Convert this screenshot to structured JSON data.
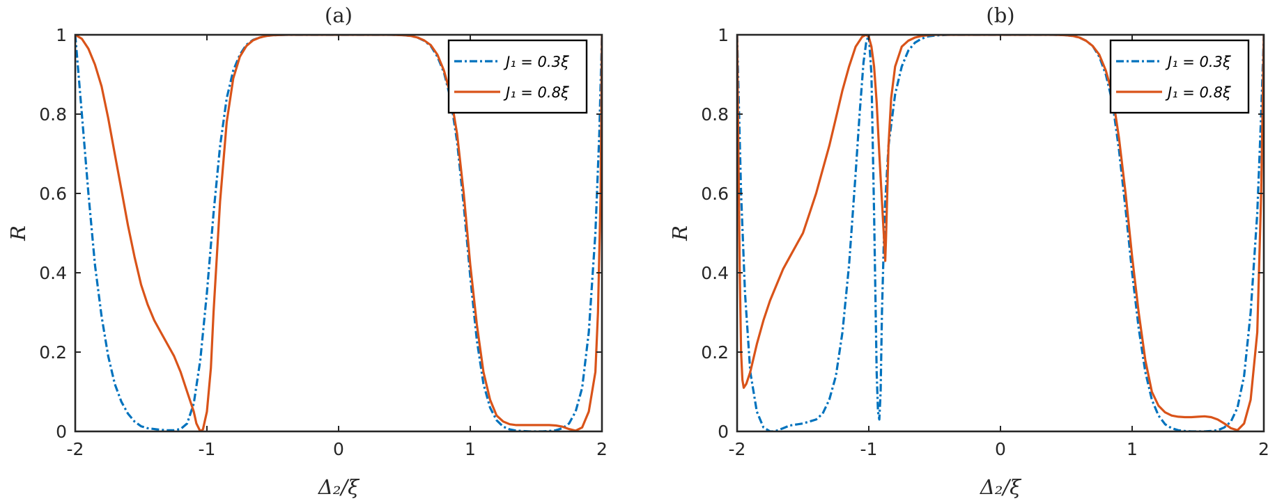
{
  "chart_data": [
    {
      "type": "line",
      "title": "(a)",
      "xlabel": "Δ₂/ξ",
      "ylabel": "R",
      "xlim": [
        -2,
        2
      ],
      "ylim": [
        0,
        1
      ],
      "xticks": [
        -2,
        -1,
        0,
        1,
        2
      ],
      "xtick_labels": [
        "-2",
        "-1",
        "0",
        "1",
        "2"
      ],
      "yticks": [
        0,
        0.2,
        0.4,
        0.6,
        0.8,
        1
      ],
      "ytick_labels": [
        "0",
        "0.2",
        "0.4",
        "0.6",
        "0.8",
        "1"
      ],
      "legend_position": "top-right",
      "grid": false,
      "series": [
        {
          "name": "J₁ = 0.3ξ",
          "color": "#0072BD",
          "style": "dashdot",
          "x": [
            -2.0,
            -1.95,
            -1.9,
            -1.85,
            -1.8,
            -1.75,
            -1.7,
            -1.65,
            -1.6,
            -1.55,
            -1.5,
            -1.45,
            -1.4,
            -1.35,
            -1.3,
            -1.25,
            -1.2,
            -1.15,
            -1.1,
            -1.05,
            -1.0,
            -0.95,
            -0.9,
            -0.85,
            -0.8,
            -0.75,
            -0.7,
            -0.65,
            -0.6,
            -0.55,
            -0.5,
            -0.4,
            -0.3,
            -0.2,
            0.0,
            0.2,
            0.3,
            0.4,
            0.5,
            0.55,
            0.6,
            0.65,
            0.7,
            0.75,
            0.8,
            0.85,
            0.9,
            0.95,
            1.0,
            1.05,
            1.1,
            1.15,
            1.2,
            1.25,
            1.3,
            1.35,
            1.4,
            1.45,
            1.5,
            1.55,
            1.6,
            1.65,
            1.7,
            1.75,
            1.8,
            1.85,
            1.9,
            1.95,
            1.98,
            2.0
          ],
          "y": [
            1.0,
            0.8,
            0.6,
            0.42,
            0.29,
            0.19,
            0.12,
            0.075,
            0.045,
            0.025,
            0.013,
            0.008,
            0.006,
            0.004,
            0.003,
            0.003,
            0.006,
            0.02,
            0.07,
            0.18,
            0.35,
            0.55,
            0.72,
            0.84,
            0.91,
            0.95,
            0.975,
            0.987,
            0.993,
            0.997,
            0.999,
            1.0,
            1.0,
            1.0,
            1.0,
            1.0,
            1.0,
            1.0,
            0.999,
            0.997,
            0.993,
            0.985,
            0.972,
            0.945,
            0.905,
            0.84,
            0.73,
            0.57,
            0.39,
            0.23,
            0.12,
            0.06,
            0.028,
            0.012,
            0.005,
            0.002,
            0.001,
            0.0,
            0.0,
            0.0,
            0.001,
            0.003,
            0.008,
            0.02,
            0.05,
            0.11,
            0.25,
            0.5,
            0.75,
            1.0
          ]
        },
        {
          "name": "J₁ = 0.8ξ",
          "color": "#D95319",
          "style": "solid",
          "x": [
            -2.0,
            -1.95,
            -1.9,
            -1.85,
            -1.8,
            -1.75,
            -1.7,
            -1.65,
            -1.6,
            -1.55,
            -1.5,
            -1.45,
            -1.4,
            -1.35,
            -1.3,
            -1.25,
            -1.2,
            -1.15,
            -1.1,
            -1.08,
            -1.05,
            -1.03,
            -1.0,
            -0.97,
            -0.95,
            -0.9,
            -0.85,
            -0.8,
            -0.75,
            -0.7,
            -0.65,
            -0.6,
            -0.55,
            -0.5,
            -0.4,
            -0.3,
            0.0,
            0.3,
            0.4,
            0.5,
            0.55,
            0.6,
            0.65,
            0.7,
            0.75,
            0.8,
            0.85,
            0.9,
            0.95,
            1.0,
            1.05,
            1.1,
            1.15,
            1.2,
            1.25,
            1.3,
            1.35,
            1.4,
            1.45,
            1.5,
            1.55,
            1.6,
            1.65,
            1.7,
            1.75,
            1.8,
            1.85,
            1.9,
            1.95,
            1.97,
            1.99,
            2.0
          ],
          "y": [
            1.0,
            0.99,
            0.965,
            0.925,
            0.87,
            0.79,
            0.7,
            0.61,
            0.52,
            0.44,
            0.37,
            0.32,
            0.28,
            0.25,
            0.22,
            0.19,
            0.15,
            0.1,
            0.05,
            0.02,
            0.0,
            0.005,
            0.05,
            0.16,
            0.3,
            0.58,
            0.78,
            0.89,
            0.945,
            0.972,
            0.986,
            0.993,
            0.997,
            0.999,
            1.0,
            1.0,
            1.0,
            1.0,
            1.0,
            0.999,
            0.997,
            0.993,
            0.986,
            0.974,
            0.95,
            0.91,
            0.85,
            0.75,
            0.6,
            0.42,
            0.27,
            0.15,
            0.08,
            0.04,
            0.025,
            0.018,
            0.016,
            0.016,
            0.016,
            0.016,
            0.016,
            0.016,
            0.015,
            0.012,
            0.006,
            0.002,
            0.01,
            0.05,
            0.15,
            0.3,
            0.6,
            1.0
          ]
        }
      ]
    },
    {
      "type": "line",
      "title": "(b)",
      "xlabel": "Δ₂/ξ",
      "ylabel": "R",
      "xlim": [
        -2,
        2
      ],
      "ylim": [
        0,
        1
      ],
      "xticks": [
        -2,
        -1,
        0,
        1,
        2
      ],
      "xtick_labels": [
        "-2",
        "-1",
        "0",
        "1",
        "2"
      ],
      "yticks": [
        0,
        0.2,
        0.4,
        0.6,
        0.8,
        1
      ],
      "ytick_labels": [
        "0",
        "0.2",
        "0.4",
        "0.6",
        "0.8",
        "1"
      ],
      "legend_position": "top-right",
      "grid": false,
      "series": [
        {
          "name": "J₁ = 0.3ξ",
          "color": "#0072BD",
          "style": "dashdot",
          "x": [
            -2.0,
            -1.97,
            -1.94,
            -1.9,
            -1.85,
            -1.8,
            -1.75,
            -1.72,
            -1.7,
            -1.65,
            -1.6,
            -1.5,
            -1.4,
            -1.35,
            -1.3,
            -1.25,
            -1.2,
            -1.15,
            -1.1,
            -1.07,
            -1.04,
            -1.02,
            -1.0,
            -0.98,
            -0.96,
            -0.94,
            -0.93,
            -0.92,
            -0.91,
            -0.9,
            -0.88,
            -0.85,
            -0.8,
            -0.75,
            -0.7,
            -0.65,
            -0.6,
            -0.55,
            -0.5,
            -0.4,
            -0.3,
            0.0,
            0.3,
            0.4,
            0.5,
            0.55,
            0.6,
            0.65,
            0.7,
            0.75,
            0.8,
            0.85,
            0.9,
            0.95,
            1.0,
            1.05,
            1.1,
            1.15,
            1.2,
            1.25,
            1.3,
            1.35,
            1.4,
            1.45,
            1.5,
            1.55,
            1.6,
            1.65,
            1.7,
            1.75,
            1.8,
            1.85,
            1.9,
            1.95,
            1.98,
            2.0
          ],
          "y": [
            1.0,
            0.6,
            0.35,
            0.15,
            0.05,
            0.01,
            0.0,
            0.0,
            0.002,
            0.008,
            0.015,
            0.02,
            0.03,
            0.045,
            0.08,
            0.14,
            0.25,
            0.42,
            0.65,
            0.8,
            0.93,
            0.98,
            1.0,
            0.9,
            0.55,
            0.15,
            0.05,
            0.03,
            0.1,
            0.3,
            0.55,
            0.72,
            0.85,
            0.92,
            0.96,
            0.98,
            0.99,
            0.996,
            0.998,
            1.0,
            1.0,
            1.0,
            1.0,
            1.0,
            0.999,
            0.997,
            0.993,
            0.985,
            0.972,
            0.945,
            0.9,
            0.83,
            0.71,
            0.56,
            0.4,
            0.26,
            0.15,
            0.08,
            0.04,
            0.018,
            0.008,
            0.003,
            0.001,
            0.0,
            0.0,
            0.0,
            0.001,
            0.003,
            0.01,
            0.025,
            0.06,
            0.14,
            0.3,
            0.55,
            0.8,
            1.0
          ]
        },
        {
          "name": "J₁ = 0.8ξ",
          "color": "#D95319",
          "style": "solid",
          "x": [
            -2.0,
            -1.99,
            -1.98,
            -1.97,
            -1.96,
            -1.95,
            -1.93,
            -1.9,
            -1.85,
            -1.8,
            -1.75,
            -1.7,
            -1.65,
            -1.6,
            -1.55,
            -1.5,
            -1.45,
            -1.4,
            -1.35,
            -1.3,
            -1.25,
            -1.2,
            -1.15,
            -1.1,
            -1.05,
            -1.02,
            -1.0,
            -0.98,
            -0.96,
            -0.94,
            -0.92,
            -0.9,
            -0.89,
            -0.88,
            -0.875,
            -0.87,
            -0.86,
            -0.85,
            -0.83,
            -0.8,
            -0.75,
            -0.7,
            -0.65,
            -0.6,
            -0.55,
            -0.5,
            -0.4,
            -0.3,
            0.0,
            0.3,
            0.4,
            0.5,
            0.55,
            0.6,
            0.65,
            0.7,
            0.75,
            0.8,
            0.85,
            0.9,
            0.95,
            1.0,
            1.05,
            1.1,
            1.15,
            1.2,
            1.25,
            1.3,
            1.35,
            1.4,
            1.45,
            1.5,
            1.55,
            1.6,
            1.65,
            1.7,
            1.75,
            1.8,
            1.85,
            1.9,
            1.95,
            1.98,
            2.0
          ],
          "y": [
            1.0,
            0.7,
            0.4,
            0.2,
            0.13,
            0.11,
            0.12,
            0.15,
            0.22,
            0.28,
            0.33,
            0.37,
            0.41,
            0.44,
            0.47,
            0.5,
            0.55,
            0.6,
            0.66,
            0.72,
            0.79,
            0.86,
            0.92,
            0.97,
            0.995,
            1.0,
            0.995,
            0.97,
            0.92,
            0.83,
            0.7,
            0.58,
            0.52,
            0.46,
            0.43,
            0.48,
            0.6,
            0.72,
            0.84,
            0.92,
            0.97,
            0.985,
            0.993,
            0.997,
            0.999,
            1.0,
            1.0,
            1.0,
            1.0,
            1.0,
            1.0,
            0.999,
            0.997,
            0.993,
            0.985,
            0.972,
            0.95,
            0.91,
            0.85,
            0.74,
            0.6,
            0.44,
            0.3,
            0.18,
            0.1,
            0.065,
            0.048,
            0.04,
            0.037,
            0.036,
            0.036,
            0.037,
            0.038,
            0.036,
            0.03,
            0.02,
            0.008,
            0.003,
            0.02,
            0.08,
            0.25,
            0.6,
            1.0
          ]
        }
      ]
    }
  ]
}
